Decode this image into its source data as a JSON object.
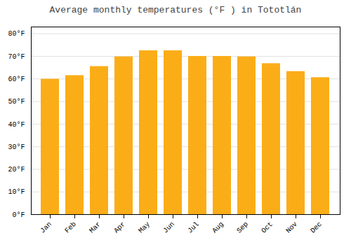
{
  "chart_data": {
    "type": "bar",
    "title": "Average monthly temperatures (°F ) in Tototlán",
    "categories": [
      "Jan",
      "Feb",
      "Mar",
      "Apr",
      "May",
      "Jun",
      "Jul",
      "Aug",
      "Sep",
      "Oct",
      "Nov",
      "Dec"
    ],
    "values": [
      59.9,
      61.5,
      65.5,
      69.8,
      72.5,
      72.5,
      70.0,
      70.0,
      69.8,
      66.8,
      63.3,
      60.6
    ],
    "color": "#FBAD18",
    "ylim": [
      0,
      83
    ],
    "yticks": [
      {
        "value": 0,
        "label": "0°F"
      },
      {
        "value": 10,
        "label": "10°F"
      },
      {
        "value": 20,
        "label": "20°F"
      },
      {
        "value": 30,
        "label": "30°F"
      },
      {
        "value": 40,
        "label": "40°F"
      },
      {
        "value": 50,
        "label": "50°F"
      },
      {
        "value": 60,
        "label": "60°F"
      },
      {
        "value": 70,
        "label": "70°F"
      },
      {
        "value": 80,
        "label": "80°F"
      }
    ],
    "grid": true
  }
}
